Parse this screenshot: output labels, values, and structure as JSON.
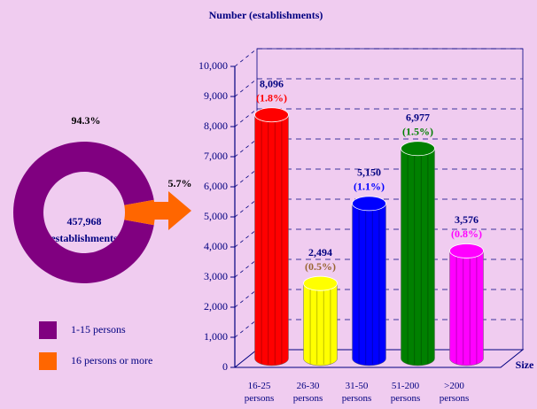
{
  "chart_data": [
    {
      "type": "pie",
      "categories": [
        "1-15 persons",
        "16 persons or more"
      ],
      "values": [
        94.3,
        5.7
      ],
      "value_labels": [
        "94.3%",
        "5.7%"
      ],
      "colors": [
        "#800080",
        "#ff6600"
      ],
      "center_text": "457,968",
      "center_subtext": "establishments",
      "donut": true
    },
    {
      "type": "bar",
      "title": "Number (establishments)",
      "x_label": "Size",
      "categories": [
        "16-25 persons",
        "26-30 persons",
        "31-50 persons",
        "51-200 persons",
        ">200 persons"
      ],
      "values": [
        8096,
        2494,
        5150,
        6977,
        3576
      ],
      "value_labels": [
        "8,096",
        "2,494",
        "5,150",
        "6,977",
        "3,576"
      ],
      "annotations": [
        "(1.8%)",
        "(0.5%)",
        "(1.1%)",
        "(1.5%)",
        "(0.8%)"
      ],
      "annotation_colors": [
        "#ff0000",
        "#996633",
        "#0000ff",
        "#008000",
        "#ff00ff"
      ],
      "colors": [
        "#ff0000",
        "#ffff00",
        "#0000ff",
        "#008000",
        "#ff00ff"
      ],
      "ylim": [
        0,
        10000
      ],
      "yticks": [
        0,
        {
          "value": 1000,
          "label": "1,000"
        },
        {
          "value": 2000,
          "label": "2,000"
        },
        {
          "value": 3000,
          "label": "3,000"
        },
        {
          "value": 4000,
          "label": "4,000"
        },
        {
          "value": 5000,
          "label": "5,000"
        },
        {
          "value": 6000,
          "label": "6,000"
        },
        {
          "value": 7000,
          "label": "7,000"
        },
        {
          "value": 8000,
          "label": "8,000"
        },
        {
          "value": 9000,
          "label": "9,000"
        },
        {
          "value": 10000,
          "label": "10,000"
        }
      ],
      "grid": true
    }
  ]
}
